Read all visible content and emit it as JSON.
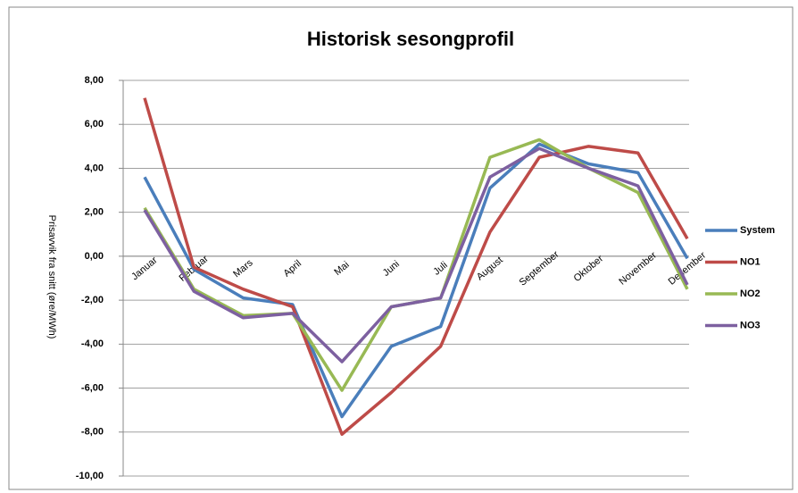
{
  "chart_data": {
    "type": "line",
    "title": "Historisk sesongprofil",
    "y_label": "Prisavvik fra snitt (øre/MWh)",
    "categories": [
      "Januar",
      "Februar",
      "Mars",
      "April",
      "Mai",
      "Juni",
      "Juli",
      "August",
      "September",
      "Oktober",
      "November",
      "Desember"
    ],
    "series": [
      {
        "name": "System",
        "color": "#4a7ebb",
        "values": [
          3.6,
          -0.6,
          -1.9,
          -2.2,
          -7.3,
          -4.1,
          -3.2,
          3.1,
          5.1,
          4.2,
          3.8,
          -0.1
        ]
      },
      {
        "name": "NO1",
        "color": "#be4b48",
        "values": [
          7.2,
          -0.5,
          -1.5,
          -2.3,
          -8.1,
          -6.2,
          -4.1,
          1.1,
          4.5,
          5.0,
          4.7,
          0.8
        ]
      },
      {
        "name": "NO2",
        "color": "#98b954",
        "values": [
          2.2,
          -1.5,
          -2.7,
          -2.6,
          -6.1,
          -2.3,
          -1.9,
          4.5,
          5.3,
          4.0,
          2.9,
          -1.5
        ]
      },
      {
        "name": "NO3",
        "color": "#7d60a0",
        "values": [
          2.1,
          -1.6,
          -2.8,
          -2.6,
          -4.8,
          -2.3,
          -1.9,
          3.6,
          4.9,
          4.0,
          3.2,
          -1.3
        ]
      }
    ],
    "ylim": [
      -10,
      8
    ],
    "yticks": [
      {
        "value": -10,
        "label": "-10,00"
      },
      {
        "value": -8,
        "label": "-8,00"
      },
      {
        "value": -6,
        "label": "-6,00"
      },
      {
        "value": -4,
        "label": "-4,00"
      },
      {
        "value": -2,
        "label": "-2,00"
      },
      {
        "value": 0,
        "label": "0,00"
      },
      {
        "value": 2,
        "label": "2,00"
      },
      {
        "value": 4,
        "label": "4,00"
      },
      {
        "value": 6,
        "label": "6,00"
      },
      {
        "value": 8,
        "label": "8,00"
      }
    ],
    "grid": true,
    "legend": "right"
  }
}
